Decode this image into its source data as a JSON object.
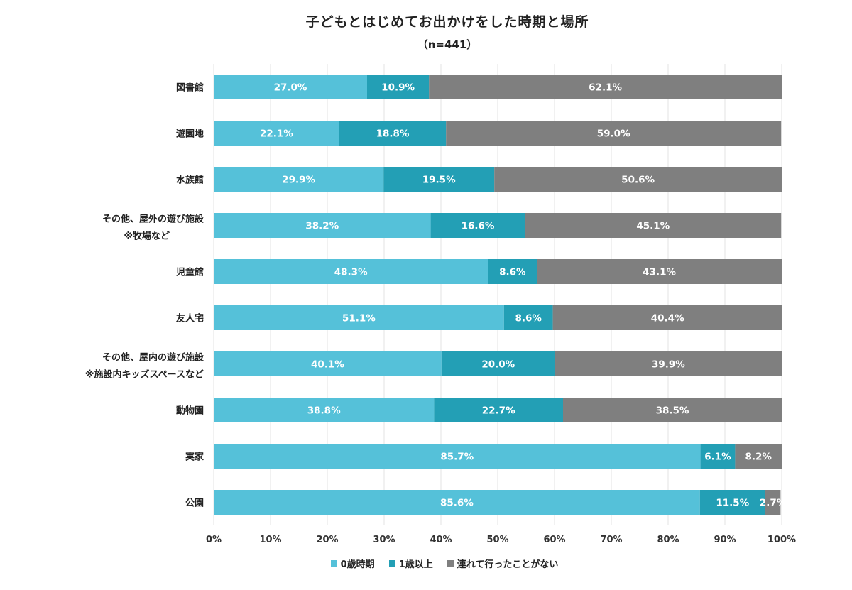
{
  "chart_data": {
    "type": "bar",
    "orientation": "horizontal",
    "stacked": true,
    "title": "子どもとはじめてお出かけをした時期と場所",
    "subtitle": "（n=441）",
    "categories": [
      [
        "図書館"
      ],
      [
        "遊園地"
      ],
      [
        "水族館"
      ],
      [
        "その他、屋外の遊び施設",
        "※牧場など"
      ],
      [
        "児童館"
      ],
      [
        "友人宅"
      ],
      [
        "その他、屋内の遊び施設",
        "※施設内キッズスペースなど"
      ],
      [
        "動物園"
      ],
      [
        "実家"
      ],
      [
        "公園"
      ]
    ],
    "series": [
      {
        "name": "0歳時期",
        "color": "#55c1d9",
        "values": [
          27.0,
          22.1,
          29.9,
          38.2,
          48.3,
          51.1,
          40.1,
          38.8,
          85.7,
          85.6
        ]
      },
      {
        "name": "1歳以上",
        "color": "#239fb5",
        "values": [
          10.9,
          18.8,
          19.5,
          16.6,
          8.6,
          8.6,
          20.0,
          22.7,
          6.1,
          11.5
        ]
      },
      {
        "name": "連れて行ったことがない",
        "color": "#7f7f7f",
        "values": [
          62.1,
          59.0,
          50.6,
          45.1,
          43.1,
          40.4,
          39.9,
          38.5,
          8.2,
          2.7
        ]
      }
    ],
    "value_suffix": "%",
    "xlim": [
      0,
      100
    ],
    "xticks": [
      "0%",
      "10%",
      "20%",
      "30%",
      "40%",
      "50%",
      "60%",
      "70%",
      "80%",
      "90%",
      "100%"
    ],
    "grid": true,
    "legend_position": "bottom"
  }
}
